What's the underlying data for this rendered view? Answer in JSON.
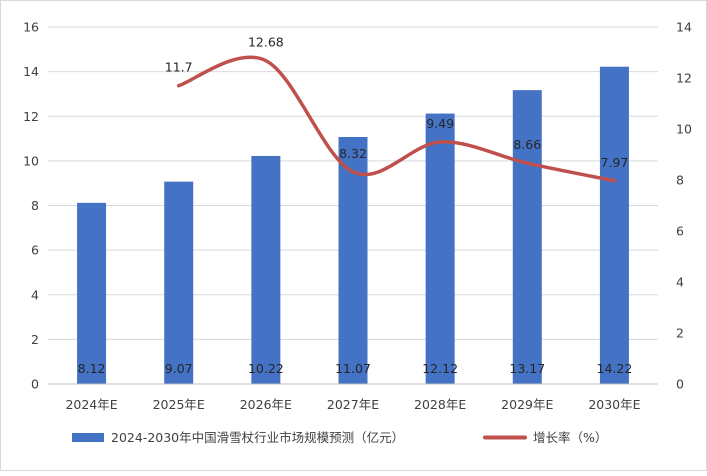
{
  "chart_data": {
    "type": "bar",
    "categories": [
      "2024年E",
      "2025年E",
      "2026年E",
      "2027年E",
      "2028年E",
      "2029年E",
      "2030年E"
    ],
    "series": [
      {
        "name": "2024-2030年中国滑雪杖行业市场规模预测（亿元）",
        "type": "bar",
        "axis": "left",
        "color": "#4472c4",
        "values": [
          8.12,
          9.07,
          10.22,
          11.07,
          12.12,
          13.17,
          14.22
        ],
        "labels": [
          "8.12",
          "9.07",
          "10.22",
          "11.07",
          "12.12",
          "13.17",
          "14.22"
        ]
      },
      {
        "name": "增长率（%）",
        "type": "line",
        "axis": "right",
        "smooth": true,
        "color": "#c0504d",
        "values": [
          null,
          11.7,
          12.68,
          8.32,
          9.49,
          8.66,
          7.97
        ],
        "labels": [
          "",
          "11.7",
          "12.68",
          "8.32",
          "9.49",
          "8.66",
          "7.97"
        ]
      }
    ],
    "y_left": {
      "min": 0,
      "max": 16,
      "ticks": [
        "0",
        "2",
        "4",
        "6",
        "8",
        "10",
        "12",
        "14",
        "16"
      ]
    },
    "y_right": {
      "min": 0,
      "max": 14,
      "ticks": [
        "0",
        "2",
        "4",
        "6",
        "8",
        "10",
        "12",
        "14"
      ]
    },
    "grid": true,
    "legend_position": "bottom"
  }
}
